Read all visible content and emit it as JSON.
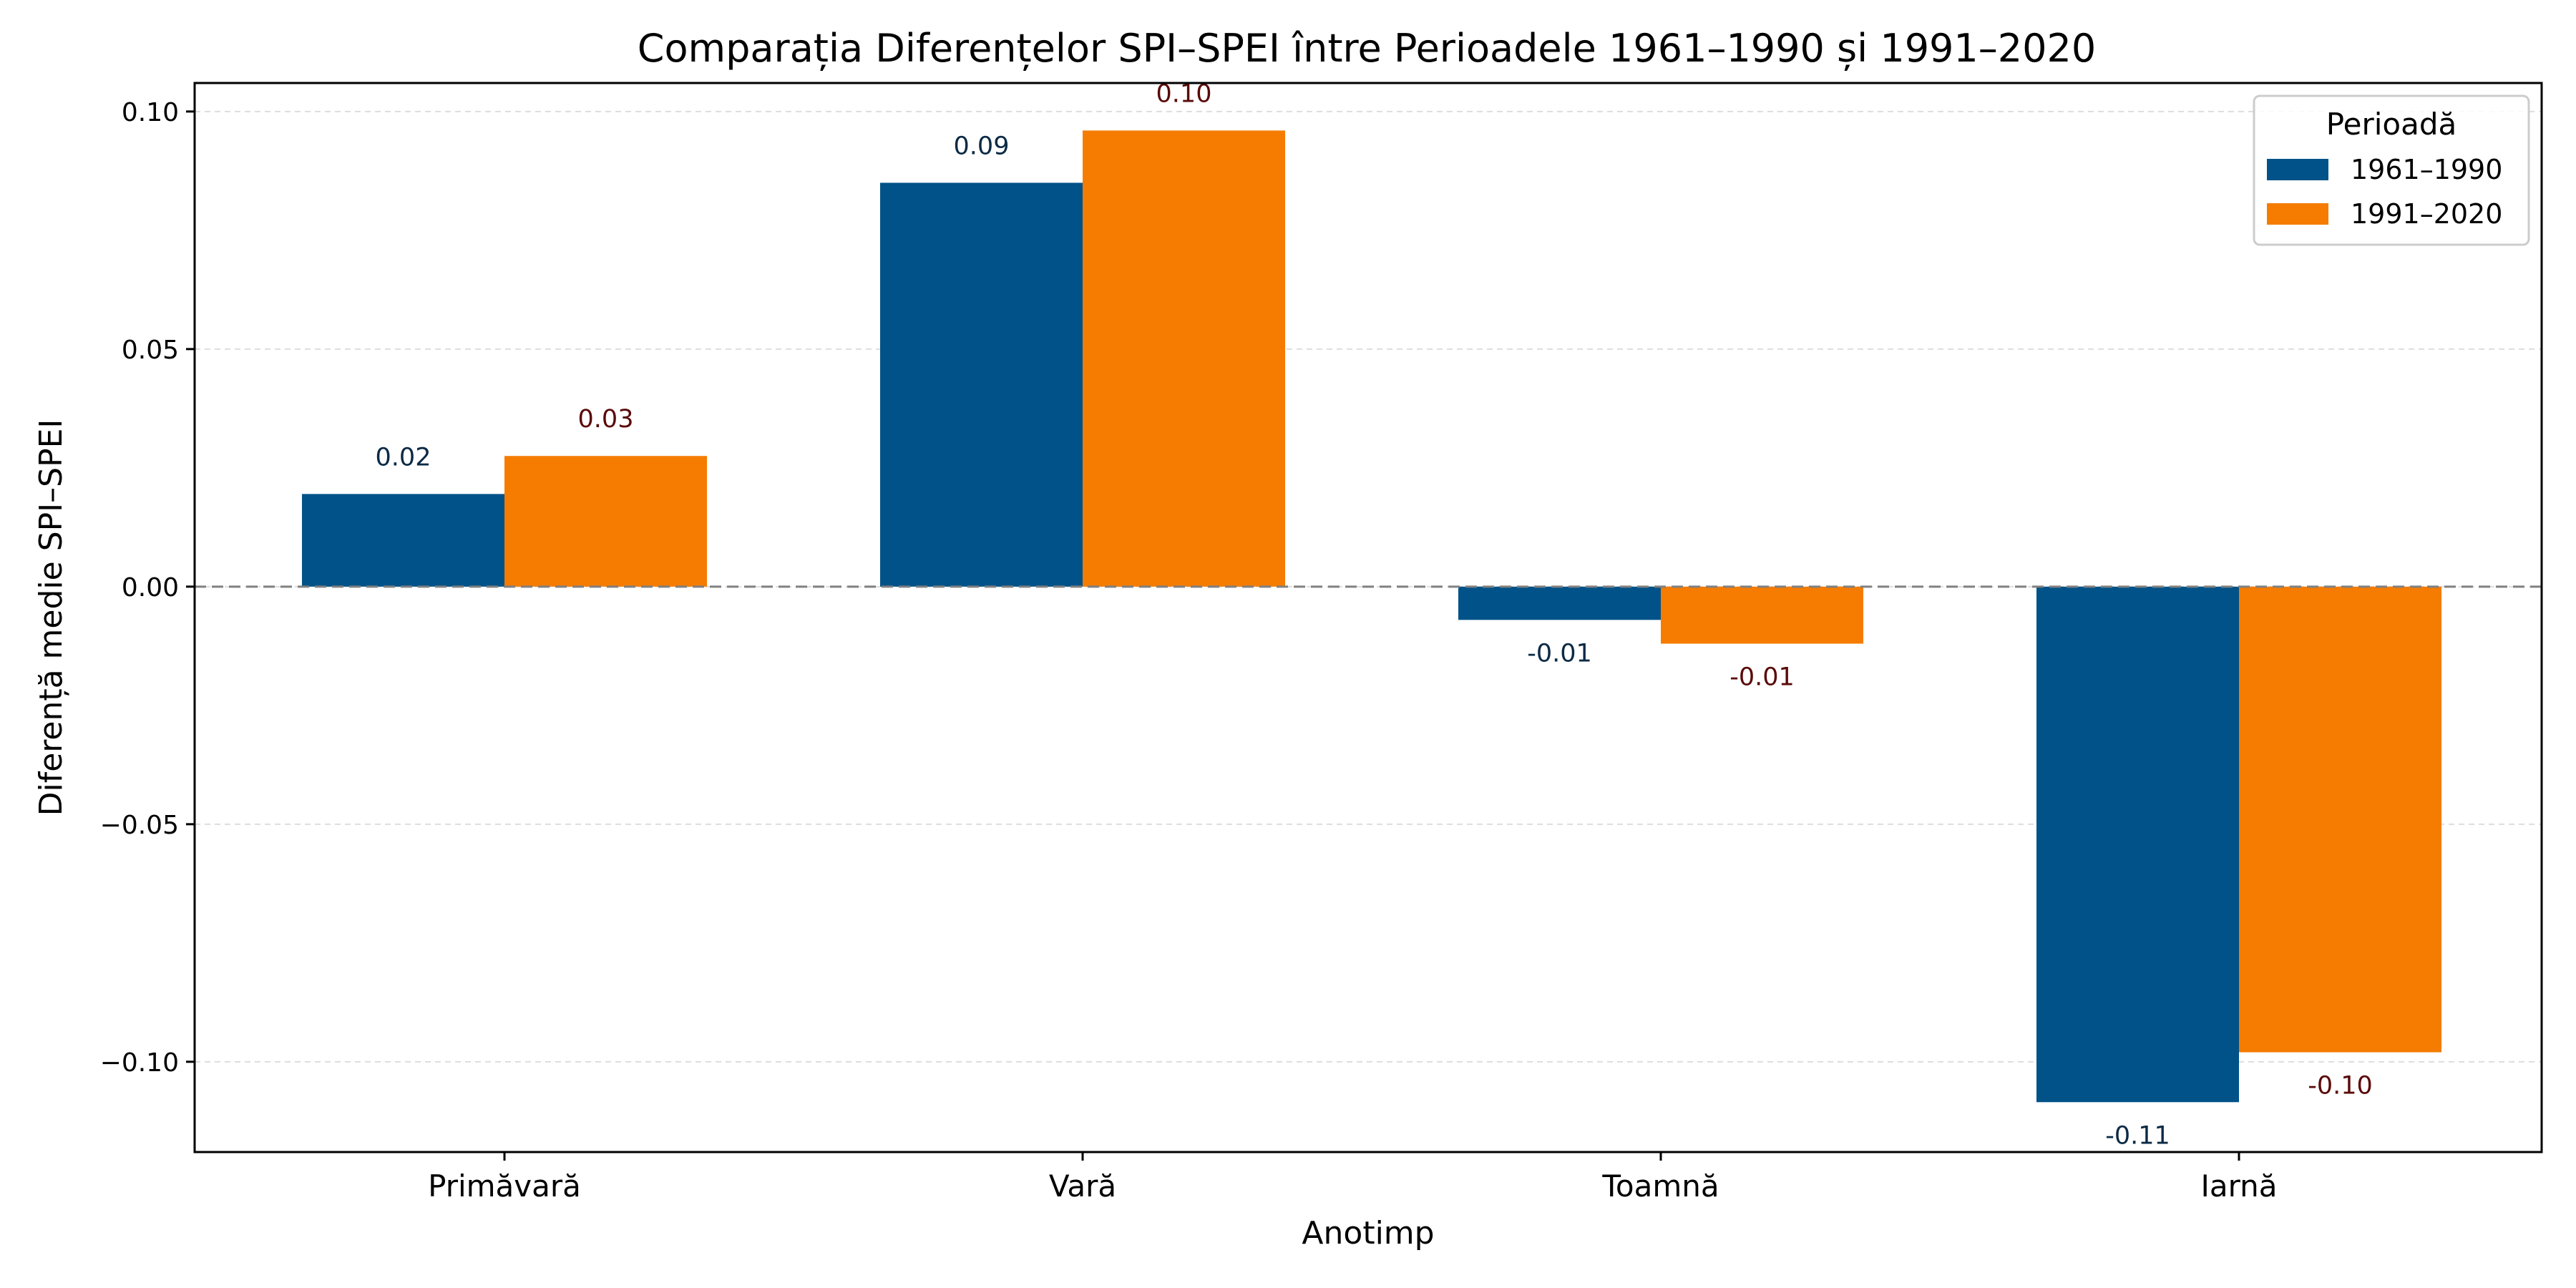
{
  "chart_data": {
    "type": "bar",
    "title": "Comparația Diferențelor SPI–SPEI între Perioadele 1961–1990 și 1991–2020",
    "xlabel": "Anotimp",
    "ylabel": "Diferență medie SPI–SPEI",
    "categories": [
      "Primăvară",
      "Vară",
      "Toamnă",
      "Iarnă"
    ],
    "ylim": [
      -0.119,
      0.106
    ],
    "yticks": [
      0.1,
      0.05,
      0.0,
      -0.05,
      -0.1
    ],
    "ytick_labels": [
      "0.10",
      "0.05",
      "0.00",
      "−0.05",
      "−0.10"
    ],
    "grid": "horizontal dashed",
    "zero_line": "dashed",
    "legend": {
      "title": "Perioadă",
      "placement": "top-right"
    },
    "series": [
      {
        "name": "1961–1990",
        "color": "#005288",
        "label_color": "#0b2a45",
        "values": [
          0.0195,
          0.085,
          -0.007,
          -0.1085
        ],
        "labels": [
          "0.02",
          "0.09",
          "-0.01",
          "-0.11"
        ]
      },
      {
        "name": "1991–2020",
        "color": "#f57c00",
        "label_color": "#5a0a0a",
        "values": [
          0.0275,
          0.096,
          -0.012,
          -0.098
        ],
        "labels": [
          "0.03",
          "0.10",
          "-0.01",
          "-0.10"
        ]
      }
    ]
  }
}
